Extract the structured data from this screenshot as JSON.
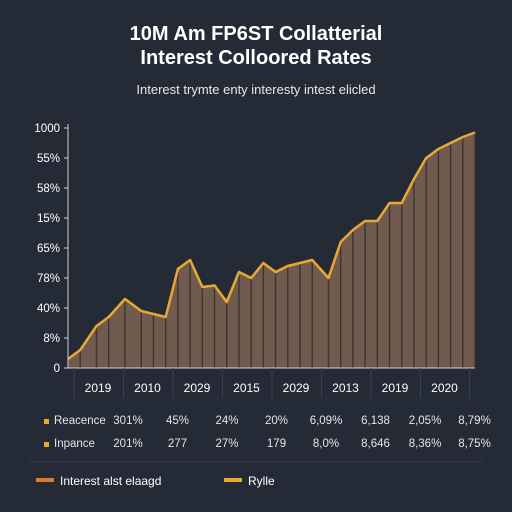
{
  "colors": {
    "background": "#252b36",
    "line": "#e8a933",
    "fill": "#7a6151",
    "grid": "#4a4e54",
    "axis": "#d0d0d0"
  },
  "legend_colors": [
    "#e07b2e",
    "#e8a933"
  ],
  "chart_data": {
    "type": "area",
    "title_line1": "10M Am FP6ST Collatterial",
    "title_line2": "Interest Colloored Rates",
    "subtitle": "Interest trymte enty interesty intest elicled",
    "y_tick_labels": [
      "1000",
      "55%",
      "58%",
      "15%",
      "65%",
      "78%",
      "40%",
      "8%",
      "0"
    ],
    "x_tick_labels": [
      "2019",
      "2010",
      "2029",
      "2015",
      "2029",
      "2013",
      "2019",
      "2020"
    ],
    "x_range": [
      0,
      100
    ],
    "y_range": [
      0,
      8
    ],
    "grid": "vertical",
    "x": [
      0,
      3,
      7,
      10,
      14,
      18,
      21,
      24,
      27,
      30,
      33,
      36,
      39,
      42,
      45,
      48,
      51,
      54,
      57,
      60,
      64,
      67,
      70,
      73,
      76,
      79,
      82,
      85,
      88,
      91,
      94,
      97,
      100
    ],
    "y": [
      0.3,
      0.6,
      1.4,
      1.7,
      2.3,
      1.9,
      1.8,
      1.7,
      3.3,
      3.6,
      2.7,
      2.75,
      2.2,
      3.2,
      3.0,
      3.5,
      3.2,
      3.4,
      3.5,
      3.6,
      3.0,
      4.2,
      4.6,
      4.9,
      4.9,
      5.5,
      5.5,
      6.3,
      7.0,
      7.3,
      7.5,
      7.7,
      7.85
    ],
    "table": {
      "rows": [
        {
          "label": "Reacence",
          "values": [
            "301%",
            "45%",
            "24%",
            "20%",
            "6,09%",
            "6,138",
            "2,05%",
            "8,79%"
          ]
        },
        {
          "label": "Inpance",
          "values": [
            "201%",
            "277",
            "27%",
            "179",
            "8,0%",
            "8,646",
            "8,36%",
            "8,75%"
          ]
        }
      ]
    },
    "legend": [
      "Interest alst elaagd",
      "Rylle"
    ],
    "legend_placement": "bottom"
  }
}
